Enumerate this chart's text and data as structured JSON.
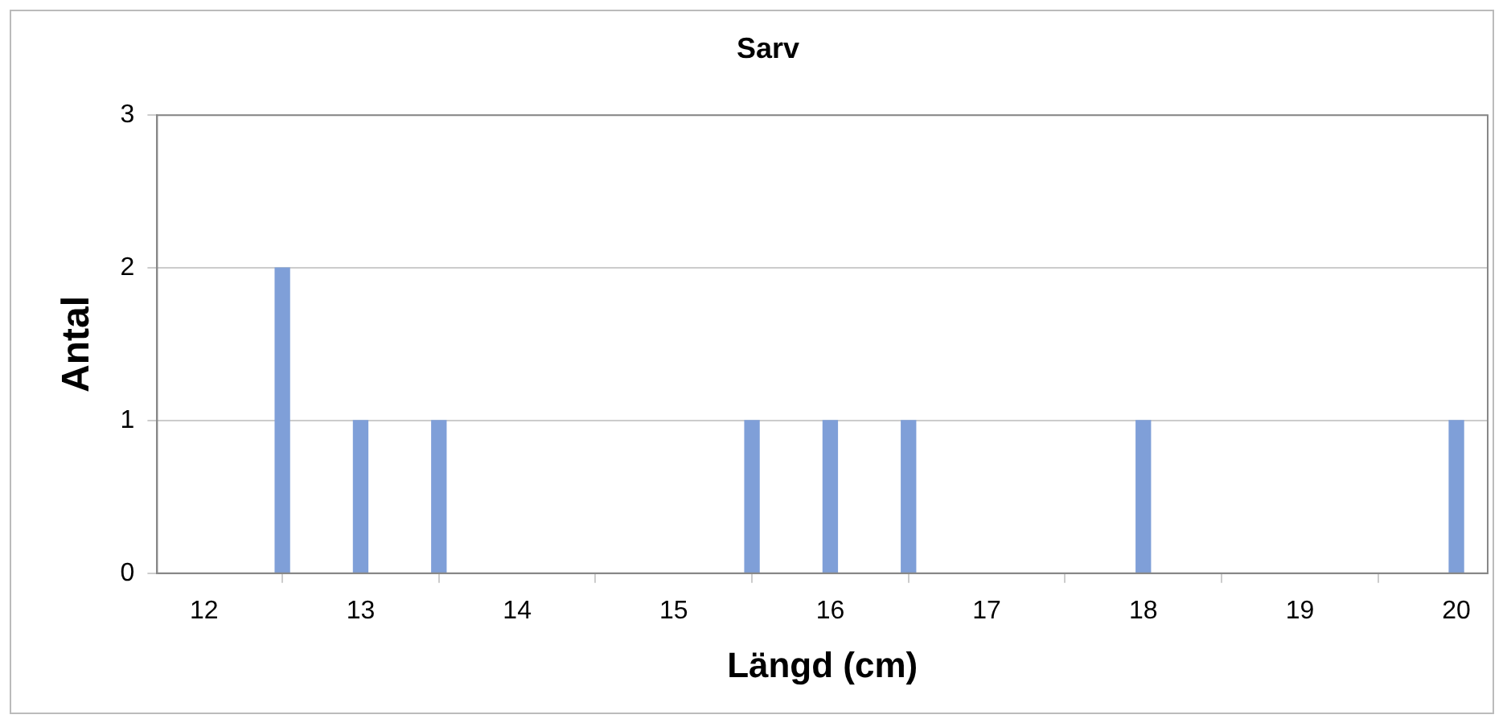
{
  "chart_data": {
    "type": "bar",
    "title": "Sarv",
    "xlabel": "Längd (cm)",
    "ylabel": "Antal",
    "x": [
      12.5,
      13,
      13.5,
      15.5,
      16,
      16.5,
      18,
      20
    ],
    "values": [
      2,
      1,
      1,
      1,
      1,
      1,
      1,
      1
    ],
    "color": "#7f9fd8",
    "xlim": [
      11.7,
      20.2
    ],
    "xticks": [
      12,
      13,
      14,
      15,
      16,
      17,
      18,
      19,
      20
    ],
    "ylim": [
      0,
      3
    ],
    "yticks": [
      0,
      1,
      2,
      3
    ],
    "grid": "y",
    "legend": false
  }
}
